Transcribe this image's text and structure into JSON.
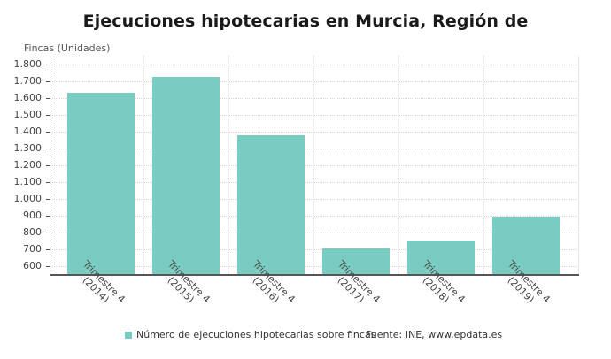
{
  "header": {
    "title": "Ejecuciones hipotecarias en Murcia, Región de",
    "y_axis_label": "Fincas (Unidades)"
  },
  "legend": {
    "series_label": "Número de ejecuciones hipotecarias sobre fincas",
    "source": "Fuente: INE, www.epdata.es"
  },
  "colors": {
    "bar": "#7accc3",
    "axis": "#555555",
    "grid": "#d6d6d6"
  },
  "y_ticks": [
    "1.800",
    "1.700",
    "1.600",
    "1.500",
    "1.400",
    "1.300",
    "1.200",
    "1.100",
    "1.000",
    "900",
    "800",
    "700",
    "600"
  ],
  "x_labels": [
    {
      "line1": "Trimestre 4",
      "line2": "(2014)"
    },
    {
      "line1": "Trimestre 4",
      "line2": "(2015)"
    },
    {
      "line1": "Trimestre 4",
      "line2": "(2016)"
    },
    {
      "line1": "Trimestre 4",
      "line2": "(2017)"
    },
    {
      "line1": "Trimestre 4",
      "line2": "(2018)"
    },
    {
      "line1": "Trimestre 4",
      "line2": "(2019)"
    }
  ],
  "chart_data": {
    "type": "bar",
    "title": "Ejecuciones hipotecarias en Murcia, Región de",
    "xlabel": "",
    "ylabel": "Fincas (Unidades)",
    "categories": [
      "Trimestre 4 (2014)",
      "Trimestre 4 (2015)",
      "Trimestre 4 (2016)",
      "Trimestre 4 (2017)",
      "Trimestre 4 (2018)",
      "Trimestre 4 (2019)"
    ],
    "series": [
      {
        "name": "Número de ejecuciones hipotecarias sobre fincas",
        "values": [
          1631,
          1724,
          1378,
          701,
          749,
          892
        ]
      }
    ],
    "ylim": [
      550,
      1850
    ],
    "yticks": [
      600,
      700,
      800,
      900,
      1000,
      1100,
      1200,
      1300,
      1400,
      1500,
      1600,
      1700,
      1800
    ],
    "grid": true,
    "legend_position": "bottom",
    "source": "Fuente: INE, www.epdata.es"
  }
}
